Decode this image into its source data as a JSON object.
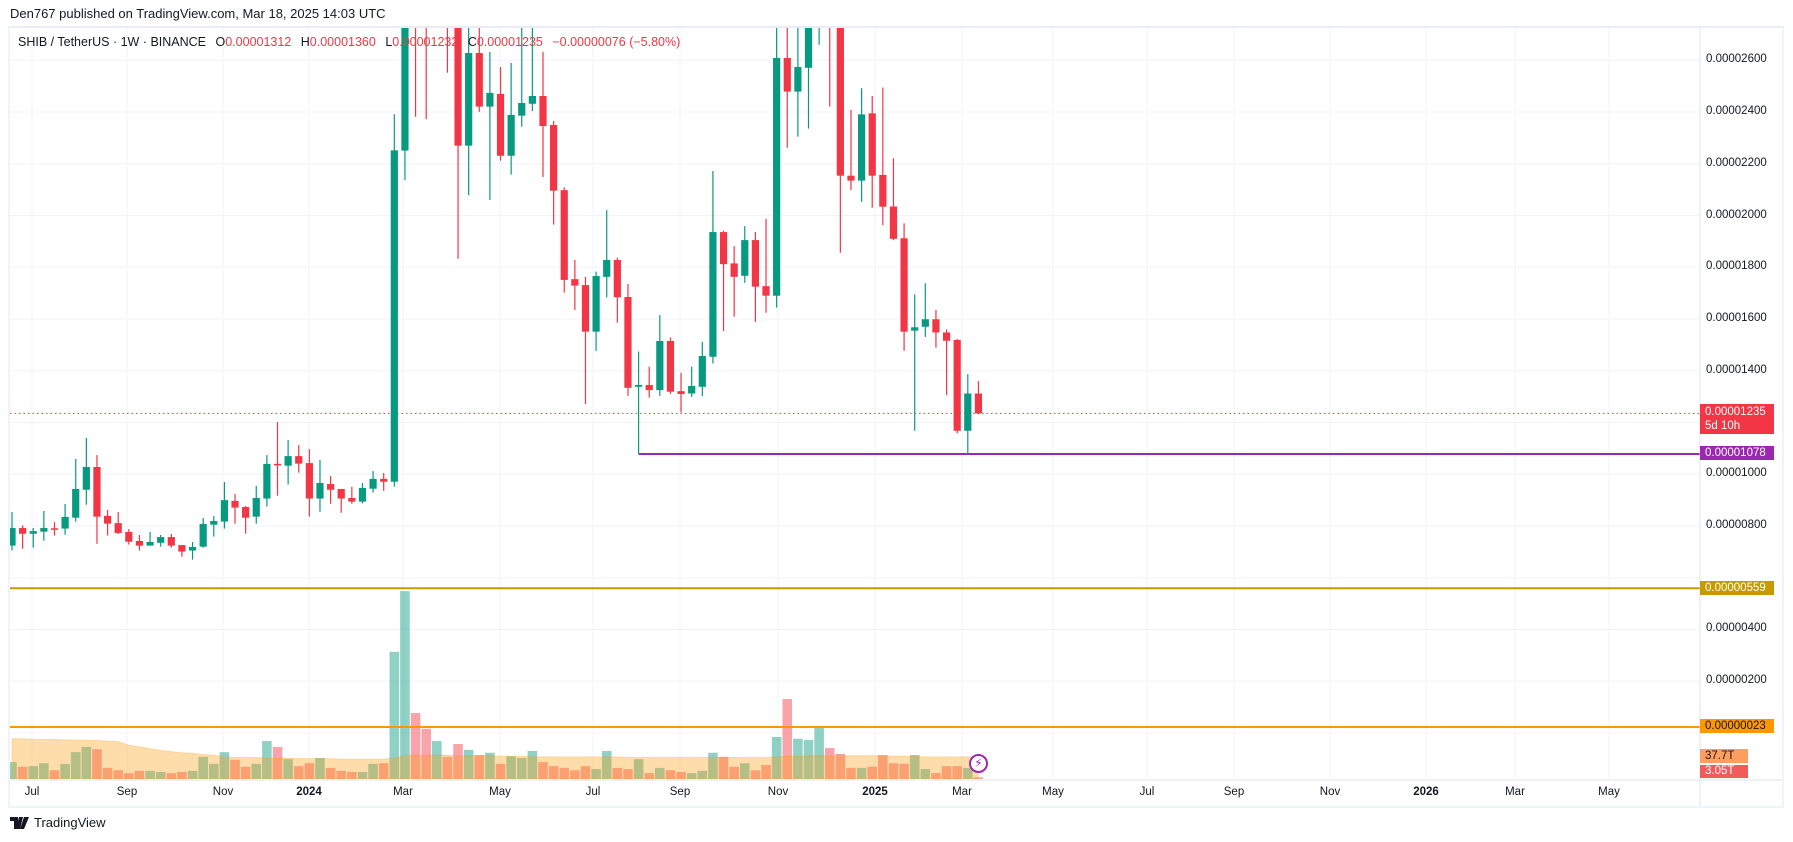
{
  "header": {
    "published": "Den767 published on TradingView.com, Mar 18, 2025 14:03 UTC"
  },
  "legend": {
    "symbol": "SHIB / TetherUS · 1W · BINANCE",
    "o_key": "O",
    "o": "0.00001312",
    "h_key": "H",
    "h": "0.00001360",
    "l_key": "L",
    "l": "0.00001232",
    "c_key": "C",
    "c": "0.00001235",
    "change": "−0.00000076 (−5.80%)"
  },
  "price_axis": {
    "ticks": [
      "0.00002600",
      "0.00002400",
      "0.00002200",
      "0.00002000",
      "0.00001800",
      "0.00001600",
      "0.00001400",
      "0.00001000",
      "0.00000800",
      "0.00000400",
      "0.00000200"
    ],
    "current_price": "0.00001235",
    "countdown": "5d 10h",
    "support_label": "0.00001078",
    "level2_label": "0.00000559",
    "level3_label": "0.00000023",
    "volume_ma_label": "37.7T",
    "volume_label": "3.05T"
  },
  "time_axis": {
    "ticks": [
      "Jul",
      "Sep",
      "Nov",
      "2024",
      "Mar",
      "May",
      "Jul",
      "Sep",
      "Nov",
      "2025",
      "Mar",
      "May",
      "Jul",
      "Sep",
      "Nov",
      "2026",
      "Mar",
      "May"
    ]
  },
  "footer": {
    "brand": "TradingView"
  },
  "colors": {
    "up": "#089981",
    "down": "#f23645",
    "support": "#9c27b0",
    "level2": "#c79a00",
    "level3": "#ff9800",
    "ma": "#ff9800"
  },
  "chart_data": {
    "type": "candlestick",
    "title": "SHIB / TetherUS · 1W · BINANCE",
    "price_scale": 1e-06,
    "ylim": [
      1.0,
      27.3
    ],
    "horizontal_levels": [
      10.78,
      5.59,
      0.23
    ],
    "current_price": 12.35,
    "ohlc": [
      [
        7.24,
        8.54,
        7.05,
        7.92
      ],
      [
        7.92,
        8.02,
        7.12,
        7.7
      ],
      [
        7.7,
        7.92,
        7.16,
        7.8
      ],
      [
        7.78,
        8.58,
        7.43,
        7.92
      ],
      [
        7.91,
        8.15,
        7.63,
        7.88
      ],
      [
        7.9,
        8.85,
        7.66,
        8.35
      ],
      [
        8.32,
        10.59,
        8.17,
        9.43
      ],
      [
        9.4,
        11.4,
        8.82,
        10.28
      ],
      [
        10.28,
        10.74,
        7.31,
        8.36
      ],
      [
        8.39,
        8.62,
        7.63,
        8.09
      ],
      [
        8.11,
        8.54,
        7.69,
        7.73
      ],
      [
        7.77,
        7.88,
        7.28,
        7.39
      ],
      [
        7.42,
        7.65,
        7.05,
        7.24
      ],
      [
        7.24,
        7.77,
        7.24,
        7.38
      ],
      [
        7.35,
        7.65,
        7.2,
        7.57
      ],
      [
        7.57,
        7.69,
        7.16,
        7.24
      ],
      [
        7.26,
        7.26,
        6.81,
        7.01
      ],
      [
        7.05,
        7.38,
        6.7,
        7.19
      ],
      [
        7.2,
        8.31,
        7.16,
        8.08
      ],
      [
        8.05,
        8.39,
        7.59,
        8.19
      ],
      [
        8.17,
        9.7,
        7.9,
        9.0
      ],
      [
        8.97,
        9.24,
        8.09,
        8.71
      ],
      [
        8.73,
        8.77,
        7.7,
        8.32
      ],
      [
        8.36,
        9.55,
        8.09,
        9.08
      ],
      [
        9.06,
        10.74,
        8.75,
        10.4
      ],
      [
        10.4,
        12.02,
        9.17,
        10.37
      ],
      [
        10.33,
        11.32,
        9.6,
        10.7
      ],
      [
        10.7,
        11.13,
        10.06,
        10.41
      ],
      [
        10.43,
        10.97,
        8.36,
        9.06
      ],
      [
        9.06,
        10.55,
        8.55,
        9.66
      ],
      [
        9.62,
        9.93,
        8.86,
        9.4
      ],
      [
        9.43,
        9.43,
        8.51,
        9.06
      ],
      [
        9.08,
        9.51,
        8.86,
        8.94
      ],
      [
        8.94,
        9.66,
        8.87,
        9.47
      ],
      [
        9.44,
        10.12,
        9.29,
        9.82
      ],
      [
        9.82,
        10.05,
        9.36,
        9.71
      ],
      [
        9.71,
        23.92,
        9.52,
        22.52
      ],
      [
        22.51,
        45.6,
        21.37,
        33.0
      ],
      [
        33.0,
        36.0,
        23.82,
        30.0
      ],
      [
        30.0,
        33.0,
        23.72,
        28.5
      ],
      [
        28.5,
        34.0,
        27.6,
        31.0
      ],
      [
        31.0,
        32.0,
        25.52,
        29.0
      ],
      [
        29.0,
        30.0,
        18.33,
        22.7
      ],
      [
        22.7,
        28.0,
        20.79,
        26.28
      ],
      [
        26.28,
        28.0,
        24.01,
        24.21
      ],
      [
        24.21,
        26.32,
        20.6,
        24.74
      ],
      [
        24.7,
        25.74,
        22.12,
        22.31
      ],
      [
        22.31,
        25.9,
        21.58,
        23.89
      ],
      [
        23.86,
        27.5,
        23.43,
        24.35
      ],
      [
        24.32,
        28.0,
        24.04,
        24.62
      ],
      [
        24.62,
        26.33,
        21.49,
        23.46
      ],
      [
        23.5,
        23.65,
        19.65,
        20.96
      ],
      [
        20.98,
        21.09,
        17.02,
        17.51
      ],
      [
        17.54,
        18.28,
        16.35,
        17.29
      ],
      [
        17.31,
        17.63,
        12.71,
        15.51
      ],
      [
        15.51,
        17.83,
        14.77,
        17.66
      ],
      [
        17.63,
        20.21,
        16.84,
        18.28
      ],
      [
        18.28,
        18.37,
        15.86,
        16.84
      ],
      [
        16.85,
        17.35,
        13.03,
        13.34
      ],
      [
        13.38,
        14.74,
        10.78,
        13.45
      ],
      [
        13.45,
        14.16,
        12.96,
        13.25
      ],
      [
        13.25,
        16.15,
        13.03,
        15.15
      ],
      [
        15.15,
        15.29,
        13.1,
        13.19
      ],
      [
        13.21,
        13.92,
        12.39,
        13.1
      ],
      [
        13.12,
        14.16,
        12.99,
        13.41
      ],
      [
        13.38,
        15.12,
        13.02,
        14.57
      ],
      [
        14.54,
        21.72,
        14.28,
        19.36
      ],
      [
        19.36,
        19.41,
        15.53,
        18.12
      ],
      [
        18.15,
        18.82,
        16.09,
        17.63
      ],
      [
        17.67,
        19.59,
        17.4,
        19.05
      ],
      [
        19.05,
        19.36,
        15.89,
        17.25
      ],
      [
        17.27,
        19.87,
        16.24,
        16.9
      ],
      [
        16.9,
        29.0,
        16.44,
        26.09
      ],
      [
        26.09,
        28.5,
        22.62,
        24.79
      ],
      [
        24.79,
        28.0,
        23.05,
        25.74
      ],
      [
        25.71,
        31.0,
        23.36,
        29.0
      ],
      [
        29.0,
        32.0,
        26.6,
        30.0
      ],
      [
        30.5,
        31.5,
        24.21,
        28.0
      ],
      [
        28.0,
        29.0,
        18.56,
        21.54
      ],
      [
        21.54,
        24.08,
        20.98,
        21.35
      ],
      [
        21.35,
        24.92,
        20.53,
        23.91
      ],
      [
        23.95,
        24.62,
        20.3,
        21.54
      ],
      [
        21.57,
        24.95,
        19.63,
        20.34
      ],
      [
        20.35,
        22.21,
        19.05,
        19.1
      ],
      [
        19.12,
        19.7,
        14.77,
        15.51
      ],
      [
        15.55,
        16.95,
        11.68,
        15.68
      ],
      [
        15.7,
        17.38,
        15.31,
        15.99
      ],
      [
        15.99,
        16.35,
        14.89,
        15.48
      ],
      [
        15.48,
        15.6,
        13.06,
        15.16
      ],
      [
        15.19,
        15.23,
        11.58,
        11.68
      ],
      [
        11.68,
        13.87,
        10.78,
        13.12
      ],
      [
        13.12,
        13.6,
        12.32,
        12.35
      ]
    ],
    "volume_unit": "T",
    "volume": [
      29,
      21,
      22,
      27,
      15,
      26,
      46,
      55,
      51,
      19,
      15,
      10,
      14,
      14,
      12,
      10,
      12,
      14,
      38,
      26,
      46,
      33,
      21,
      26,
      65,
      55,
      34,
      22,
      27,
      36,
      19,
      14,
      12,
      12,
      26,
      27,
      218,
      322,
      113,
      86,
      65,
      38,
      60,
      50,
      41,
      45,
      26,
      39,
      36,
      48,
      29,
      22,
      19,
      15,
      22,
      17,
      48,
      19,
      17,
      34,
      10,
      19,
      15,
      12,
      10,
      14,
      45,
      38,
      21,
      27,
      15,
      24,
      72,
      137,
      69,
      67,
      89,
      53,
      43,
      19,
      19,
      21,
      41,
      27,
      26,
      41,
      17,
      10,
      22,
      22,
      19,
      3.05
    ],
    "volume_ma": [
      69,
      69,
      68,
      68,
      68,
      67,
      67,
      66,
      66,
      65,
      64,
      58,
      55,
      52,
      49,
      47,
      45,
      44,
      42,
      41,
      38,
      37,
      37,
      37,
      36,
      36,
      36,
      35,
      35,
      35,
      35,
      34,
      34,
      34,
      34,
      34,
      36,
      40,
      41,
      41,
      41,
      41,
      40,
      40,
      40,
      40,
      39,
      39,
      39,
      38,
      38,
      38,
      38,
      38,
      38,
      38,
      38,
      38,
      37,
      37,
      37,
      37,
      37,
      37,
      37,
      37,
      37,
      37,
      37,
      37,
      37,
      37,
      38,
      39,
      39,
      40,
      40,
      40,
      40,
      40,
      40,
      40,
      40,
      39,
      39,
      39,
      38,
      38,
      38,
      38,
      38,
      37.7
    ]
  }
}
